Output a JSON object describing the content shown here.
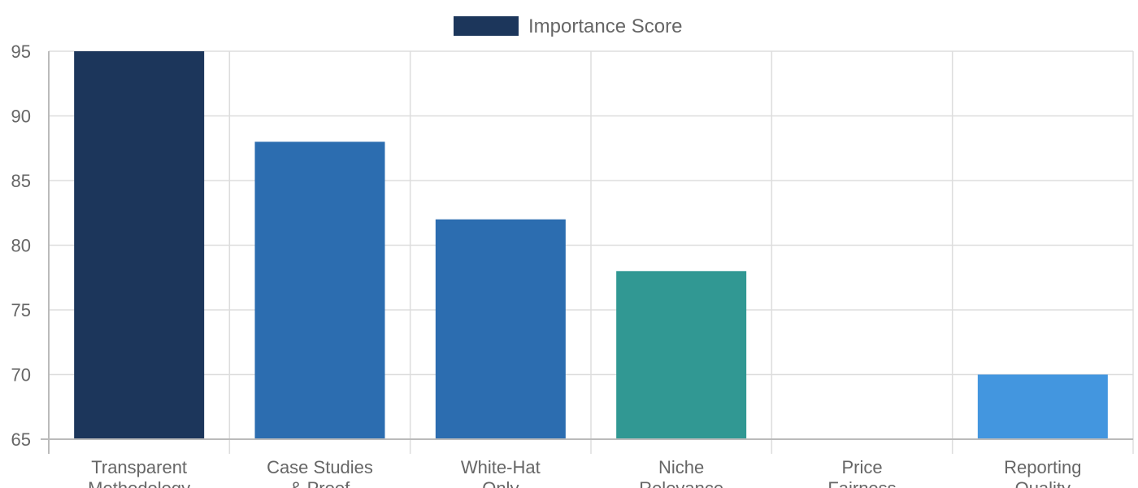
{
  "chart_data": {
    "type": "bar",
    "legend": {
      "position": "top-center",
      "label": "Importance Score",
      "color": "#1c365b"
    },
    "categories": [
      [
        "Transparent",
        "Methodology"
      ],
      [
        "Case Studies",
        "& Proof"
      ],
      [
        "White-Hat",
        "Only"
      ],
      [
        "Niche",
        "Relevance"
      ],
      [
        "Price",
        "Fairness"
      ],
      [
        "Reporting",
        "Quality"
      ]
    ],
    "series": [
      {
        "name": "Importance Score",
        "values": [
          95,
          88,
          82,
          78,
          65,
          70
        ],
        "colors": [
          "#1c365b",
          "#2c6db0",
          "#2c6db0",
          "#319893",
          "#ffffff",
          "#4396df"
        ]
      }
    ],
    "ylim": [
      65,
      95
    ],
    "yticks": [
      65,
      70,
      75,
      80,
      85,
      90,
      95
    ],
    "grid": true,
    "xlabel": "",
    "ylabel": "",
    "title": ""
  }
}
